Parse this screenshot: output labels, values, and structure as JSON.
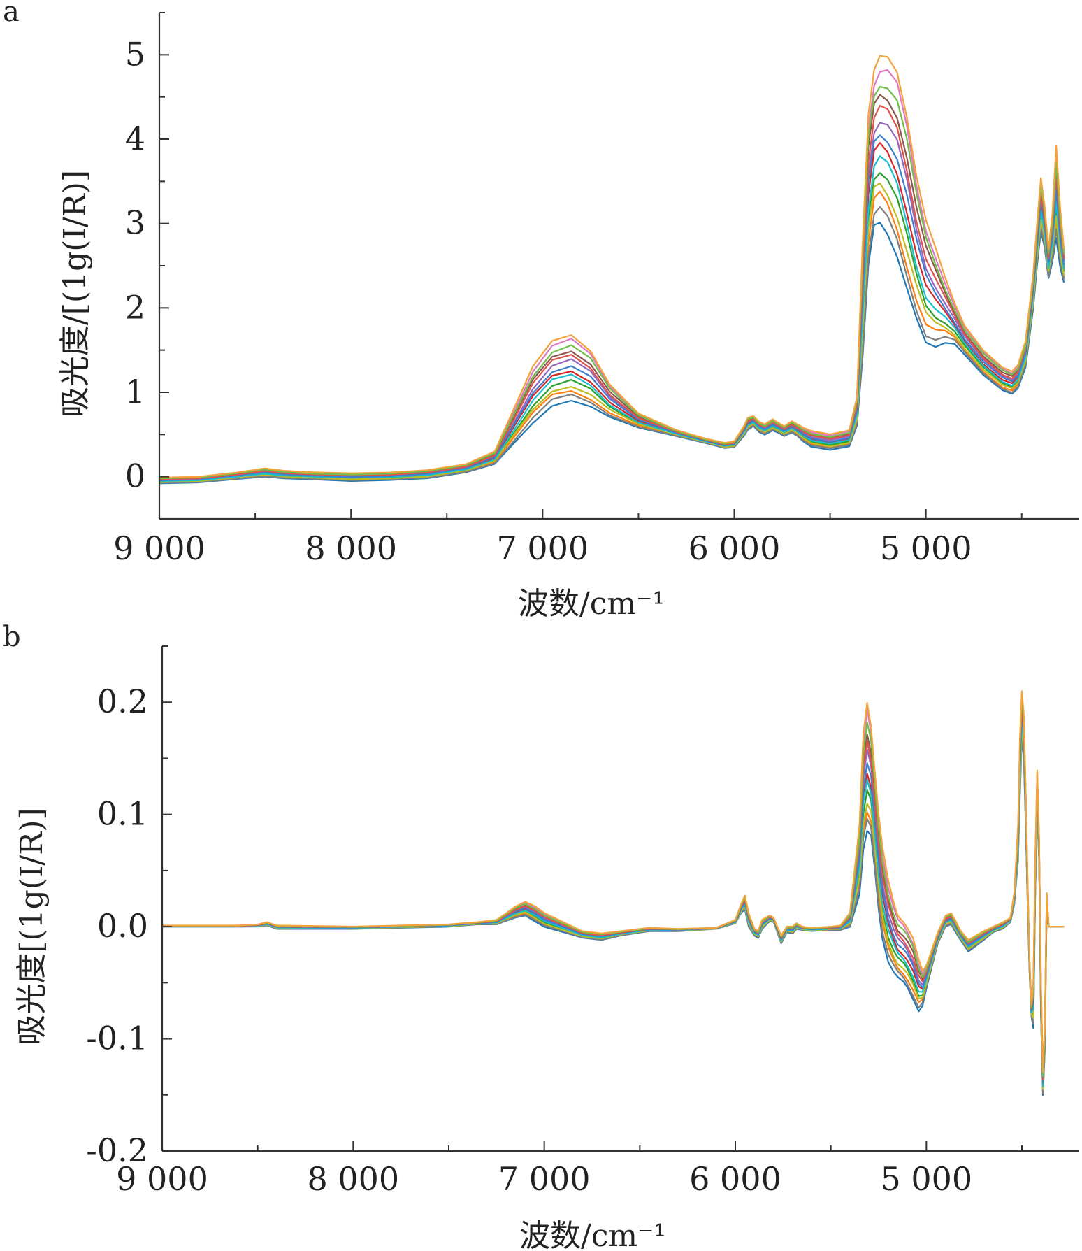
{
  "palette": [
    "#1f77b4",
    "#ff7f0e",
    "#2ca02c",
    "#d62728",
    "#9467bd",
    "#8c564b",
    "#e377c2",
    "#7f7f7f",
    "#bcbd22",
    "#17becf",
    "#3d7ecf",
    "#e0524a",
    "#6fbf4a",
    "#f2a33a"
  ],
  "chart_data": [
    {
      "type": "line",
      "panel": "a",
      "xlabel": "波数/cm⁻¹",
      "ylabel": "吸光度/[(1g(I/R)]",
      "xlim": [
        9000,
        4200
      ],
      "ylim": [
        -0.5,
        5.5
      ],
      "x_ticks": [
        {
          "value": 9000,
          "label": "9 000"
        },
        {
          "value": 8000,
          "label": "8 000"
        },
        {
          "value": 7000,
          "label": "7 000"
        },
        {
          "value": 6000,
          "label": "6 000"
        },
        {
          "value": 5000,
          "label": "5 000"
        }
      ],
      "y_ticks": [
        {
          "value": 0,
          "label": "0"
        },
        {
          "value": 1,
          "label": "1"
        },
        {
          "value": 2,
          "label": "2"
        },
        {
          "value": 3,
          "label": "3"
        },
        {
          "value": 4,
          "label": "4"
        },
        {
          "value": 5,
          "label": "5"
        }
      ],
      "series_count": 14,
      "envelope": {
        "x": [
          9000,
          8800,
          8600,
          8450,
          8350,
          8200,
          8000,
          7800,
          7600,
          7400,
          7250,
          7150,
          7050,
          6950,
          6850,
          6750,
          6650,
          6500,
          6300,
          6150,
          6050,
          6000,
          5950,
          5930,
          5900,
          5870,
          5840,
          5800,
          5770,
          5740,
          5700,
          5670,
          5640,
          5600,
          5500,
          5400,
          5360,
          5330,
          5300,
          5270,
          5240,
          5200,
          5150,
          5100,
          5050,
          5000,
          4950,
          4900,
          4850,
          4800,
          4700,
          4600,
          4550,
          4520,
          4480,
          4440,
          4420,
          4400,
          4380,
          4360,
          4340,
          4320,
          4300,
          4280
        ],
        "low": [
          -0.08,
          -0.07,
          -0.03,
          0.0,
          -0.02,
          -0.03,
          -0.05,
          -0.04,
          -0.02,
          0.05,
          0.15,
          0.4,
          0.65,
          0.85,
          0.9,
          0.82,
          0.7,
          0.58,
          0.48,
          0.4,
          0.34,
          0.35,
          0.48,
          0.55,
          0.6,
          0.53,
          0.5,
          0.55,
          0.52,
          0.48,
          0.52,
          0.48,
          0.42,
          0.36,
          0.32,
          0.36,
          0.6,
          1.4,
          2.5,
          3.0,
          3.05,
          2.9,
          2.6,
          2.2,
          1.85,
          1.58,
          1.55,
          1.6,
          1.58,
          1.45,
          1.2,
          1.02,
          0.98,
          1.05,
          1.3,
          2.0,
          2.5,
          2.9,
          2.7,
          2.35,
          2.55,
          2.85,
          2.5,
          2.3
        ],
        "high": [
          -0.01,
          0.0,
          0.05,
          0.1,
          0.07,
          0.05,
          0.04,
          0.05,
          0.08,
          0.15,
          0.3,
          0.8,
          1.3,
          1.6,
          1.68,
          1.5,
          1.1,
          0.75,
          0.55,
          0.45,
          0.4,
          0.42,
          0.6,
          0.7,
          0.72,
          0.65,
          0.62,
          0.68,
          0.64,
          0.6,
          0.66,
          0.62,
          0.58,
          0.54,
          0.5,
          0.55,
          0.95,
          2.8,
          4.3,
          4.8,
          4.95,
          4.95,
          4.8,
          4.3,
          3.6,
          3.05,
          2.7,
          2.35,
          2.05,
          1.8,
          1.5,
          1.3,
          1.25,
          1.32,
          1.6,
          2.4,
          3.0,
          3.55,
          3.2,
          2.7,
          3.1,
          3.9,
          3.2,
          2.7
        ]
      }
    },
    {
      "type": "line",
      "panel": "b",
      "xlabel": "波数/cm⁻¹",
      "ylabel": "吸光度[(1g(I/R)]",
      "xlim": [
        9000,
        4200
      ],
      "ylim": [
        -0.2,
        0.25
      ],
      "x_ticks": [
        {
          "value": 9000,
          "label": "9 000"
        },
        {
          "value": 8000,
          "label": "8 000"
        },
        {
          "value": 7000,
          "label": "7 000"
        },
        {
          "value": 6000,
          "label": "6 000"
        },
        {
          "value": 5000,
          "label": "5 000"
        }
      ],
      "y_ticks": [
        {
          "value": 0.2,
          "label": "0.2"
        },
        {
          "value": 0.1,
          "label": "0.1"
        },
        {
          "value": 0.0,
          "label": "0.0"
        },
        {
          "value": -0.1,
          "label": "-0.1"
        },
        {
          "value": -0.2,
          "label": "-0.2"
        }
      ],
      "series_count": 14,
      "envelope": {
        "x": [
          9000,
          8600,
          8500,
          8450,
          8400,
          8000,
          7500,
          7350,
          7250,
          7200,
          7150,
          7100,
          7050,
          7000,
          6900,
          6800,
          6700,
          6600,
          6450,
          6300,
          6100,
          6000,
          5970,
          5950,
          5930,
          5900,
          5880,
          5860,
          5820,
          5800,
          5780,
          5760,
          5730,
          5700,
          5680,
          5650,
          5600,
          5500,
          5450,
          5400,
          5350,
          5330,
          5310,
          5290,
          5270,
          5250,
          5230,
          5200,
          5170,
          5150,
          5120,
          5100,
          5070,
          5040,
          5020,
          5000,
          4970,
          4940,
          4900,
          4870,
          4850,
          4820,
          4780,
          4700,
          4650,
          4600,
          4560,
          4540,
          4520,
          4510,
          4500,
          4490,
          4480,
          4470,
          4460,
          4450,
          4440,
          4430,
          4420,
          4410,
          4400,
          4390,
          4380,
          4370,
          4360,
          4350,
          4340,
          4330,
          4320,
          4310,
          4300,
          4290,
          4280
        ],
        "low": [
          0.0,
          0.0,
          0.0,
          0.001,
          -0.002,
          -0.002,
          0.0,
          0.002,
          0.002,
          0.005,
          0.008,
          0.01,
          0.005,
          0.0,
          -0.005,
          -0.01,
          -0.012,
          -0.008,
          -0.004,
          -0.004,
          -0.002,
          0.003,
          0.012,
          0.015,
          0.0,
          -0.008,
          -0.01,
          -0.002,
          0.005,
          0.004,
          -0.005,
          -0.015,
          -0.005,
          -0.006,
          -0.002,
          -0.003,
          -0.004,
          -0.003,
          -0.003,
          0.0,
          0.03,
          0.07,
          0.085,
          0.08,
          0.05,
          0.015,
          -0.01,
          -0.03,
          -0.04,
          -0.045,
          -0.05,
          -0.055,
          -0.065,
          -0.075,
          -0.07,
          -0.055,
          -0.035,
          -0.015,
          0.0,
          0.002,
          -0.004,
          -0.012,
          -0.022,
          -0.012,
          -0.005,
          -0.002,
          0.004,
          0.02,
          0.06,
          0.12,
          0.17,
          0.15,
          0.09,
          0.02,
          -0.04,
          -0.08,
          -0.09,
          0.03,
          0.1,
          0.06,
          -0.08,
          -0.15,
          -0.11,
          0.02,
          0.0,
          0.0,
          0.0,
          0.0,
          0.0,
          0.0,
          0.0,
          0.0,
          0.0
        ],
        "high": [
          0.001,
          0.001,
          0.002,
          0.004,
          0.001,
          0.0,
          0.002,
          0.004,
          0.006,
          0.012,
          0.018,
          0.022,
          0.018,
          0.012,
          0.004,
          -0.004,
          -0.006,
          -0.004,
          -0.001,
          -0.002,
          -0.001,
          0.006,
          0.02,
          0.028,
          0.012,
          -0.002,
          -0.004,
          0.006,
          0.01,
          0.008,
          0.0,
          -0.008,
          0.0,
          0.0,
          0.003,
          0.0,
          -0.001,
          0.0,
          0.001,
          0.012,
          0.09,
          0.17,
          0.2,
          0.18,
          0.14,
          0.1,
          0.07,
          0.04,
          0.02,
          0.01,
          0.005,
          0.0,
          -0.01,
          -0.03,
          -0.04,
          -0.035,
          -0.02,
          -0.005,
          0.01,
          0.012,
          0.006,
          -0.004,
          -0.012,
          -0.004,
          0.0,
          0.004,
          0.008,
          0.03,
          0.09,
          0.17,
          0.21,
          0.19,
          0.12,
          0.04,
          -0.03,
          -0.07,
          -0.05,
          0.06,
          0.14,
          0.08,
          -0.05,
          -0.13,
          -0.09,
          0.03,
          0.0,
          0.0,
          0.0,
          0.0,
          0.0,
          0.0,
          0.0,
          0.0,
          0.0
        ]
      }
    }
  ]
}
